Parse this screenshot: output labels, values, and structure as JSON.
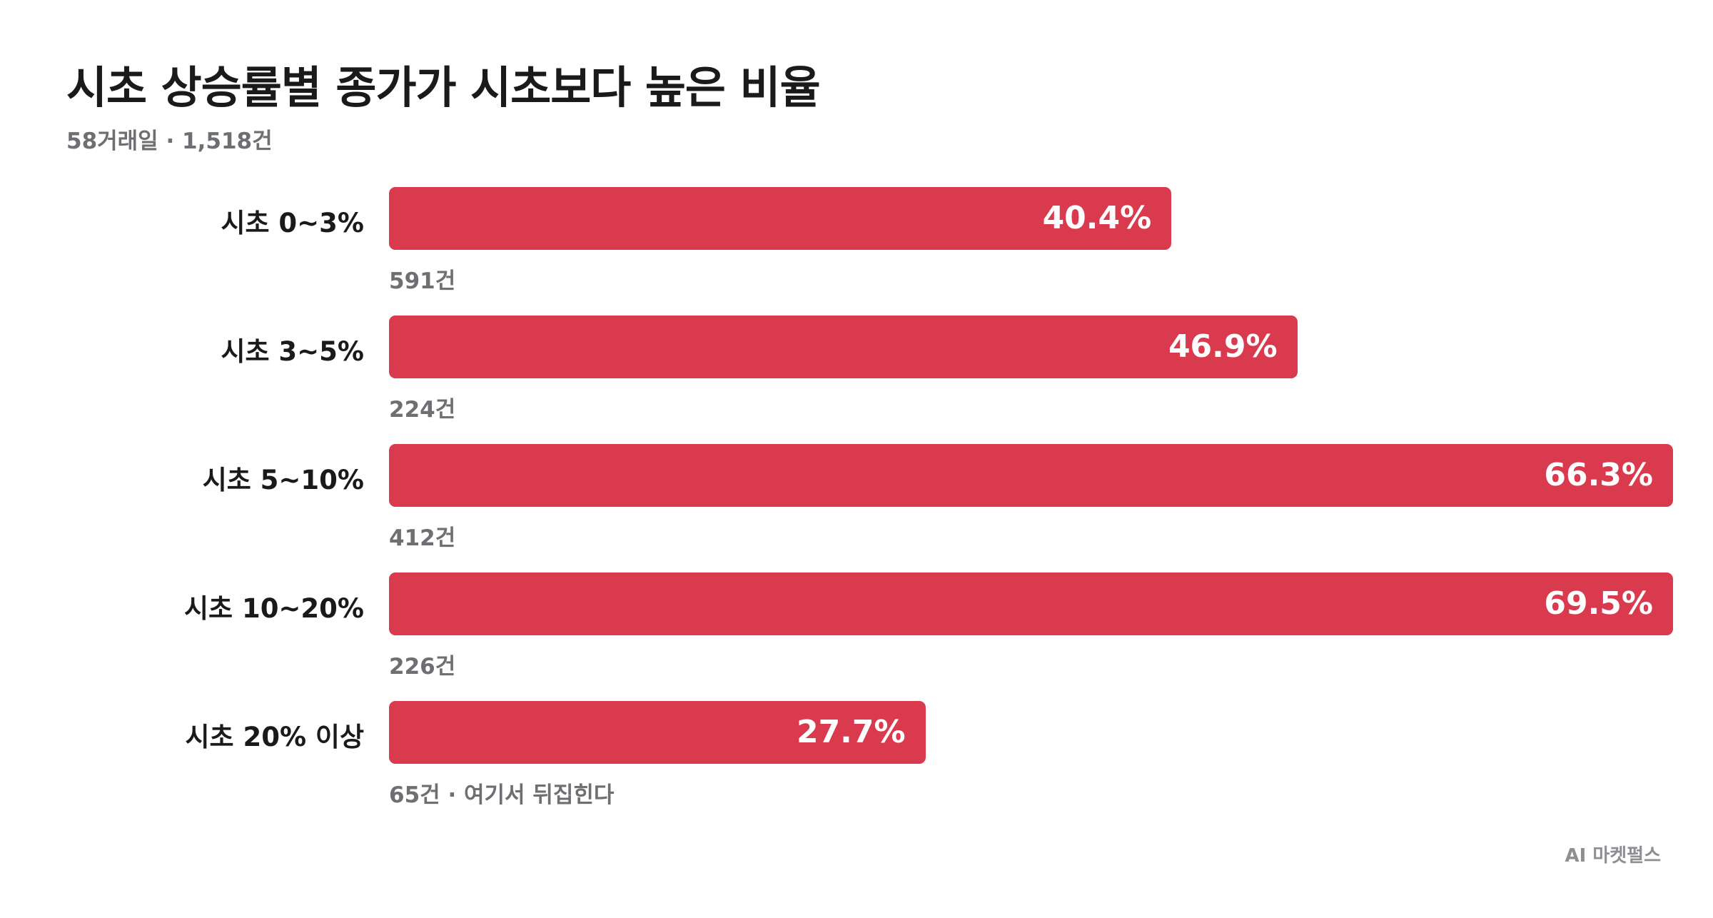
{
  "title": "시초 상승률별 종가가 시초보다 높은 비율",
  "subtitle": "58거래일 · 1,518건",
  "footer": "AI 마켓펄스",
  "colors": {
    "bar": "#d93a4e",
    "text": "#1a1a1a",
    "muted": "#6e6e73"
  },
  "chart_data": {
    "type": "bar",
    "orientation": "horizontal",
    "categories": [
      "시초 0~3%",
      "시초 3~5%",
      "시초 5~10%",
      "시초 10~20%",
      "시초 20% 이상"
    ],
    "values": [
      40.4,
      46.9,
      66.3,
      69.5,
      27.7
    ],
    "value_labels": [
      "40.4%",
      "46.9%",
      "66.3%",
      "69.5%",
      "27.7%"
    ],
    "notes": [
      "591건",
      "224건",
      "412건",
      "226건",
      "65건 · 여기서 뒤집힌다"
    ],
    "title": "시초 상승률별 종가가 시초보다 높은 비율",
    "subtitle": "58거래일 · 1,518건",
    "xlabel": "",
    "ylabel": "",
    "xlim": [
      0,
      66.3
    ],
    "grid": false
  }
}
